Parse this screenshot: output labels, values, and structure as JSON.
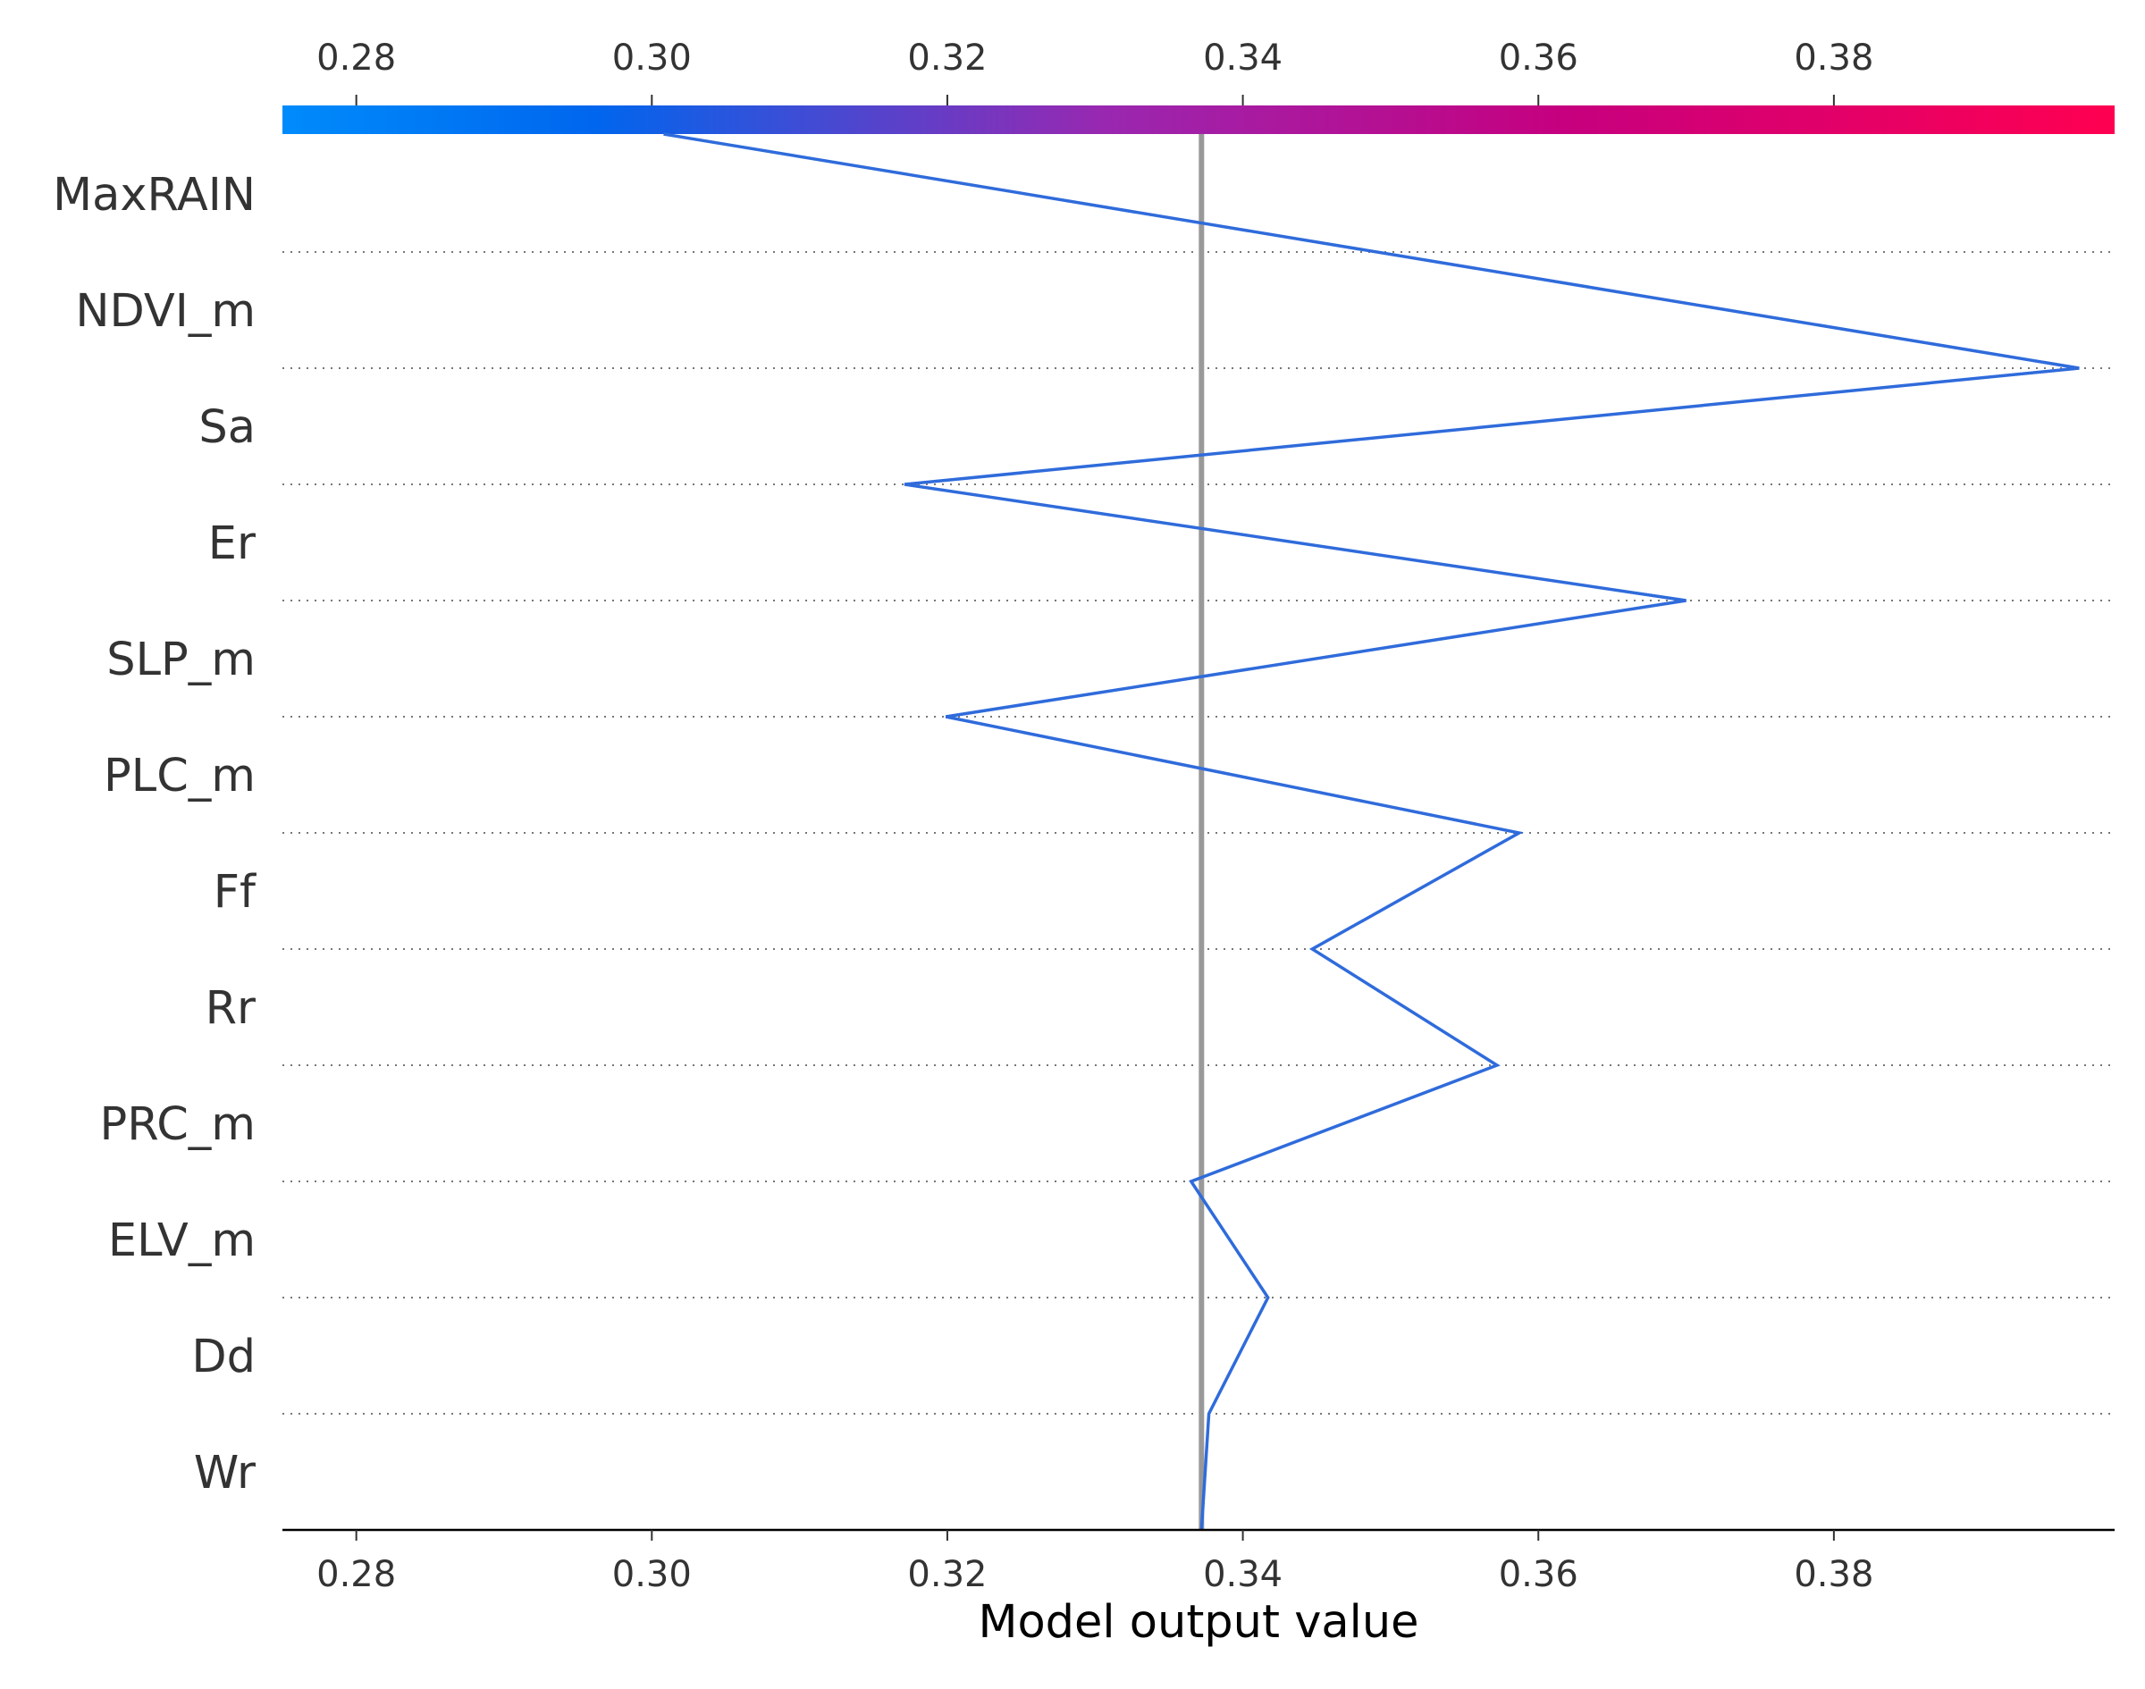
{
  "chart_data": {
    "type": "line",
    "xlabel": "Model output value",
    "xlim": [
      0.275,
      0.399
    ],
    "x_ticks": [
      "0.28",
      "0.30",
      "0.32",
      "0.34",
      "0.36",
      "0.38"
    ],
    "base_value": 0.3372,
    "features": [
      "MaxRAIN",
      "NDVI_m",
      "Sa",
      "Er",
      "SLP_m",
      "PLC_m",
      "Ff",
      "Rr",
      "PRC_m",
      "ELV_m",
      "Dd",
      "Wr"
    ],
    "path_values": [
      0.3372,
      0.3377,
      0.3417,
      0.3365,
      0.3572,
      0.3447,
      0.3587,
      0.3199,
      0.37,
      0.3171,
      0.3966,
      0.3008
    ],
    "grid": "dotted horizontal lines between features",
    "colorbar": {
      "colors": [
        "#008bfb",
        "#0066ee",
        "#9a27b0",
        "#c6007f",
        "#ff0051"
      ]
    },
    "colors": {
      "line": "#2f6bdb",
      "base_line": "#999999",
      "text": "#333333",
      "grid": "#777777"
    }
  }
}
